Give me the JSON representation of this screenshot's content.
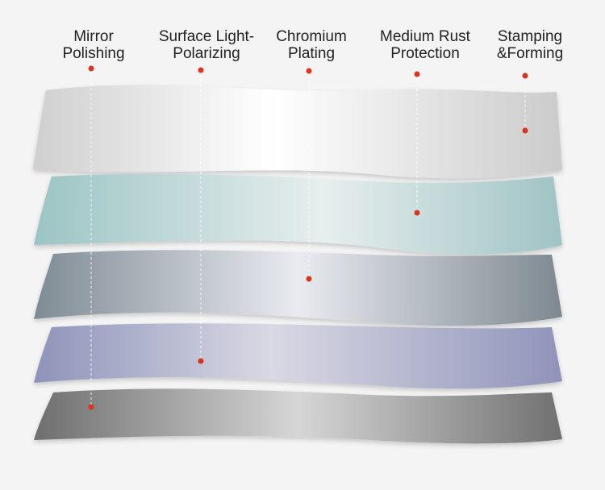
{
  "labels": [
    {
      "text": "Mirror\nPolishing"
    },
    {
      "text": "Surface Light-\nPolarizing"
    },
    {
      "text": "Chromium\nPlating"
    },
    {
      "text": "Medium Rust\nProtection"
    },
    {
      "text": "Stamping\n&Forming"
    }
  ],
  "colors": {
    "dot": "#d9351f",
    "guide_line": "#ffffff",
    "layer1": "#d8d8d8",
    "layer2": "#a9cccc",
    "layer3": "#8c97a0",
    "layer4": "#9297bd",
    "layer5": "#7d7d7d"
  }
}
